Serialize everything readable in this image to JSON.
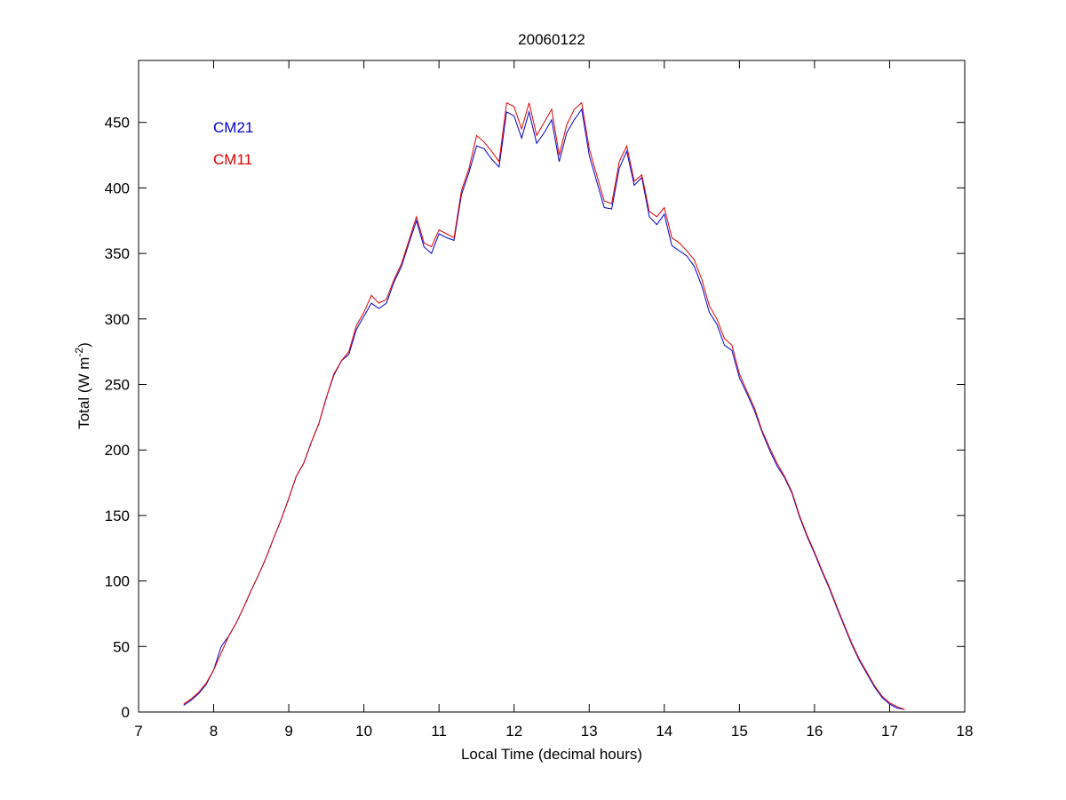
{
  "chart_data": {
    "type": "line",
    "title": "20060122",
    "xlabel": "Local Time (decimal hours)",
    "ylabel": {
      "text": "Total (W m",
      "superscript": "-2",
      "suffix": ")"
    },
    "xlim": [
      7,
      18
    ],
    "xticks": [
      7,
      8,
      9,
      10,
      11,
      12,
      13,
      14,
      15,
      16,
      17,
      18
    ],
    "ylim": [
      0,
      500
    ],
    "yticks": [
      0,
      50,
      100,
      150,
      200,
      250,
      300,
      350,
      400,
      450
    ],
    "legend": "upper left",
    "x": [
      7.6,
      7.7,
      7.8,
      7.9,
      8.0,
      8.1,
      8.2,
      8.3,
      8.4,
      8.5,
      8.6,
      8.7,
      8.8,
      8.9,
      9.0,
      9.1,
      9.2,
      9.3,
      9.4,
      9.5,
      9.6,
      9.7,
      9.8,
      9.9,
      10.0,
      10.1,
      10.2,
      10.3,
      10.4,
      10.5,
      10.6,
      10.7,
      10.8,
      10.9,
      11.0,
      11.1,
      11.2,
      11.3,
      11.4,
      11.5,
      11.6,
      11.7,
      11.8,
      11.9,
      12.0,
      12.1,
      12.2,
      12.3,
      12.4,
      12.5,
      12.6,
      12.7,
      12.8,
      12.9,
      13.0,
      13.1,
      13.2,
      13.3,
      13.4,
      13.5,
      13.6,
      13.7,
      13.8,
      13.9,
      14.0,
      14.1,
      14.2,
      14.3,
      14.4,
      14.5,
      14.6,
      14.7,
      14.8,
      14.9,
      15.0,
      15.1,
      15.2,
      15.3,
      15.4,
      15.5,
      15.6,
      15.7,
      15.8,
      15.9,
      16.0,
      16.1,
      16.2,
      16.3,
      16.4,
      16.5,
      16.6,
      16.7,
      16.8,
      16.9,
      17.0,
      17.1,
      17.2
    ],
    "series": [
      {
        "name": "CM21",
        "color": "#0000cc",
        "values": [
          5,
          9,
          14,
          21,
          32,
          50,
          58,
          68,
          80,
          93,
          105,
          118,
          133,
          147,
          163,
          180,
          190,
          206,
          220,
          240,
          257,
          268,
          273,
          292,
          302,
          312,
          308,
          312,
          328,
          340,
          358,
          375,
          355,
          350,
          365,
          362,
          360,
          395,
          412,
          432,
          430,
          422,
          416,
          458,
          455,
          438,
          458,
          434,
          442,
          452,
          420,
          442,
          452,
          460,
          425,
          405,
          385,
          384,
          415,
          428,
          402,
          408,
          378,
          372,
          380,
          356,
          352,
          348,
          340,
          325,
          305,
          296,
          280,
          276,
          255,
          243,
          230,
          214,
          200,
          188,
          179,
          167,
          149,
          134,
          121,
          107,
          94,
          79,
          65,
          51,
          39,
          29,
          19,
          11,
          6,
          3,
          2
        ]
      },
      {
        "name": "CM11",
        "color": "#dd0000",
        "values": [
          6,
          10,
          15,
          22,
          32,
          45,
          58,
          68,
          80,
          93,
          105,
          118,
          133,
          147,
          163,
          180,
          190,
          206,
          220,
          240,
          258,
          268,
          275,
          295,
          305,
          318,
          312,
          315,
          330,
          342,
          360,
          378,
          358,
          355,
          368,
          365,
          362,
          398,
          415,
          440,
          435,
          428,
          420,
          465,
          462,
          445,
          465,
          440,
          450,
          460,
          425,
          448,
          460,
          465,
          430,
          410,
          390,
          388,
          420,
          432,
          405,
          410,
          382,
          378,
          385,
          362,
          358,
          352,
          345,
          330,
          310,
          300,
          285,
          280,
          258,
          245,
          232,
          215,
          202,
          190,
          180,
          168,
          150,
          135,
          122,
          108,
          95,
          80,
          66,
          52,
          40,
          30,
          20,
          12,
          7,
          4,
          2
        ]
      }
    ]
  }
}
